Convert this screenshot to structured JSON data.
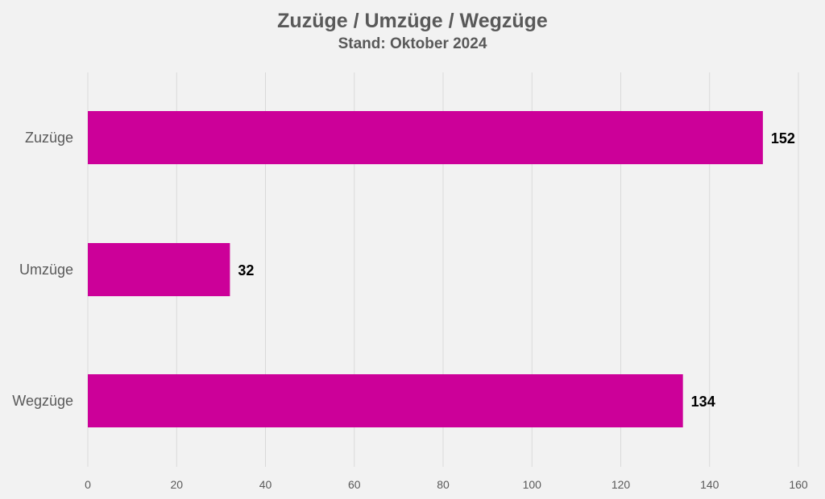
{
  "chart_data": {
    "type": "bar",
    "orientation": "horizontal",
    "title": "Zuzüge / Umzüge / Wegzüge",
    "subtitle": "Stand: Oktober 2024",
    "categories": [
      "Zuzüge",
      "Umzüge",
      "Wegzüge"
    ],
    "values": [
      152,
      32,
      134
    ],
    "data_labels": [
      "152",
      "32",
      "134"
    ],
    "xlim": [
      0,
      160
    ],
    "ticks": [
      0,
      20,
      40,
      60,
      80,
      100,
      120,
      140,
      160
    ],
    "tick_labels": [
      "0",
      "20",
      "40",
      "60",
      "80",
      "100",
      "120",
      "140",
      "160"
    ],
    "grid": true,
    "legend": "none",
    "bar_color": "#cc0099",
    "background": "#f2f2f2"
  }
}
